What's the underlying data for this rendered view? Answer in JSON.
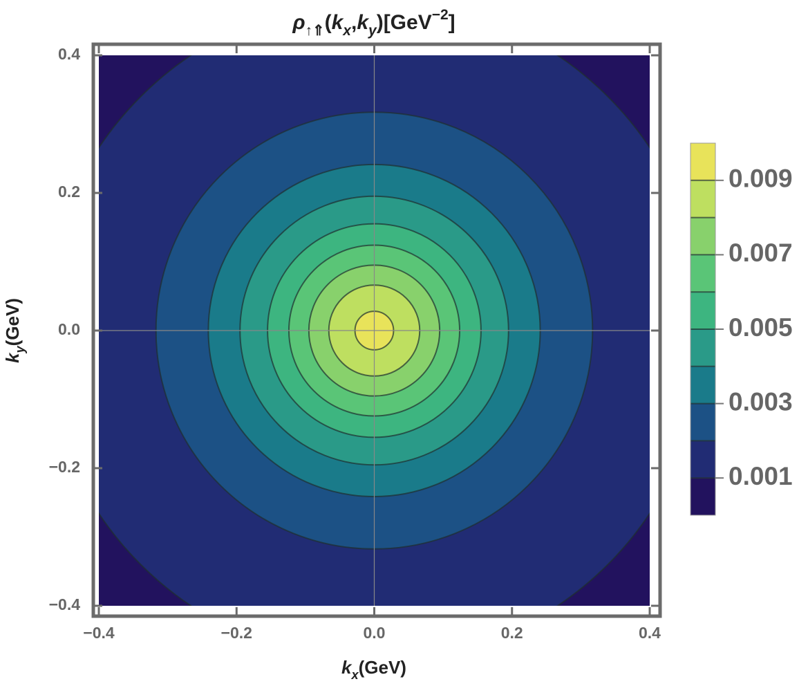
{
  "chart_data": {
    "type": "contour",
    "title": [
      {
        "text": "ρ",
        "style": "italic"
      },
      {
        "text": "↑⇑",
        "shift": "sub"
      },
      {
        "text": "(",
        "style": "normal"
      },
      {
        "text": "k",
        "style": "italic"
      },
      {
        "text": "x",
        "shift": "sub",
        "style": "italic"
      },
      {
        "text": ",",
        "style": "normal"
      },
      {
        "text": "k",
        "style": "italic"
      },
      {
        "text": "y",
        "shift": "sub",
        "style": "italic"
      },
      {
        "text": ")[GeV",
        "style": "normal"
      },
      {
        "text": "−2",
        "shift": "sup"
      },
      {
        "text": "]",
        "style": "normal"
      }
    ],
    "x_label": [
      {
        "text": "k",
        "style": "italic"
      },
      {
        "text": "x",
        "shift": "sub",
        "style": "italic"
      },
      {
        "text": "(GeV)",
        "style": "normal"
      }
    ],
    "y_label": [
      {
        "text": "k",
        "style": "italic"
      },
      {
        "text": "y",
        "shift": "sub",
        "style": "italic"
      },
      {
        "text": "(GeV)",
        "style": "normal"
      }
    ],
    "xlim": [
      -0.4,
      0.4
    ],
    "ylim": [
      -0.4,
      0.4
    ],
    "xticks": [
      {
        "value": -0.4,
        "label": "−0.4"
      },
      {
        "value": -0.2,
        "label": "−0.2"
      },
      {
        "value": 0,
        "label": "0.0"
      },
      0.2,
      0.4
    ],
    "yticks": [
      {
        "value": -0.4,
        "label": "−0.4"
      },
      {
        "value": -0.2,
        "label": "−0.2"
      },
      {
        "value": 0,
        "label": "0.0"
      },
      0.2,
      0.4
    ],
    "origin_lines": true,
    "levels": [
      0.001,
      0.002,
      0.003,
      0.004,
      0.005,
      0.006,
      0.007,
      0.008,
      0.009
    ],
    "radii": [
      0.48,
      0.317,
      0.241,
      0.195,
      0.155,
      0.124,
      0.095,
      0.066,
      0.028
    ],
    "colors": [
      "#22125e",
      "#212c74",
      "#1c5185",
      "#1a7b8a",
      "#2a9a88",
      "#3db580",
      "#5ac577",
      "#88d16c",
      "#bedf60",
      "#e8e35a"
    ],
    "colorbar": {
      "lim": [
        0,
        0.01
      ],
      "ticks": [
        0.001,
        0.003,
        0.005,
        0.007,
        0.009
      ]
    }
  }
}
